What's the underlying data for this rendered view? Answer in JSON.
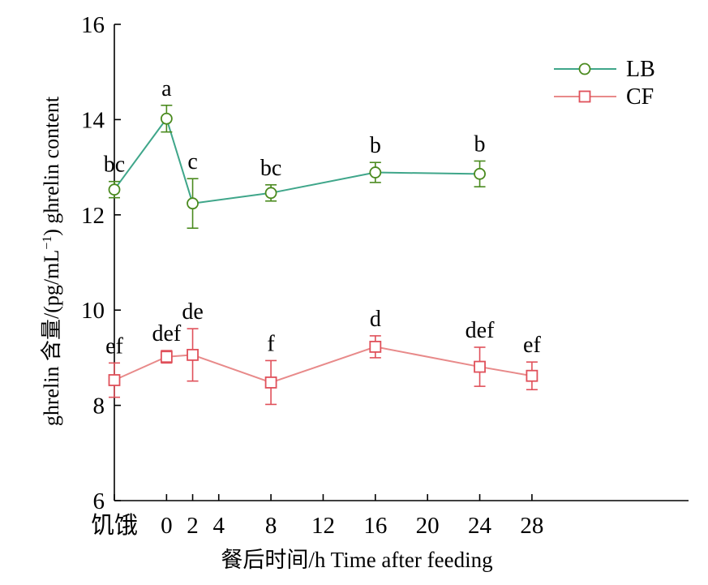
{
  "chart_data": {
    "type": "line",
    "title": "",
    "xlabel": "餐后时间/h Time after feeding",
    "ylabel_prefix": "ghrelin 含量/(pg/mL",
    "ylabel_exp": "−1",
    "ylabel_suffix": ") ghrelin content",
    "ylim": [
      6,
      16
    ],
    "yticks": [
      "6",
      "8",
      "10",
      "12",
      "14",
      "16"
    ],
    "xlim": [
      -4,
      40
    ],
    "xticks": [
      {
        "value": -4,
        "label": "饥饿"
      },
      {
        "value": 0,
        "label": "0"
      },
      {
        "value": 2,
        "label": "2"
      },
      {
        "value": 4,
        "label": "4"
      },
      {
        "value": 8,
        "label": "8"
      },
      {
        "value": 12,
        "label": "12"
      },
      {
        "value": 16,
        "label": "16"
      },
      {
        "value": 20,
        "label": "20"
      },
      {
        "value": 24,
        "label": "24"
      },
      {
        "value": 28,
        "label": "28"
      }
    ],
    "legend_position": "top-right",
    "series": [
      {
        "name": "LB",
        "color": "#4a8a1e",
        "line_color": "#3fa68a",
        "marker": "circle",
        "points": [
          {
            "x": -4,
            "y": 12.53,
            "err": 0.17,
            "label": "bc"
          },
          {
            "x": 0,
            "y": 14.02,
            "err": 0.28,
            "label": "a"
          },
          {
            "x": 2,
            "y": 12.24,
            "err": 0.52,
            "label": "c"
          },
          {
            "x": 8,
            "y": 12.46,
            "err": 0.17,
            "label": "bc"
          },
          {
            "x": 16,
            "y": 12.89,
            "err": 0.21,
            "label": "b"
          },
          {
            "x": 24,
            "y": 12.86,
            "err": 0.27,
            "label": "b"
          }
        ]
      },
      {
        "name": "CF",
        "color": "#e0505a",
        "line_color": "#e88a8a",
        "marker": "square",
        "points": [
          {
            "x": -4,
            "y": 8.53,
            "err": 0.36,
            "label": "ef"
          },
          {
            "x": 0,
            "y": 9.02,
            "err": 0.13,
            "label": "def"
          },
          {
            "x": 2,
            "y": 9.06,
            "err": 0.55,
            "label": "de"
          },
          {
            "x": 8,
            "y": 8.48,
            "err": 0.46,
            "label": "f"
          },
          {
            "x": 16,
            "y": 9.23,
            "err": 0.23,
            "label": "d"
          },
          {
            "x": 24,
            "y": 8.81,
            "err": 0.41,
            "label": "def"
          },
          {
            "x": 28,
            "y": 8.62,
            "err": 0.29,
            "label": "ef"
          }
        ]
      }
    ]
  }
}
